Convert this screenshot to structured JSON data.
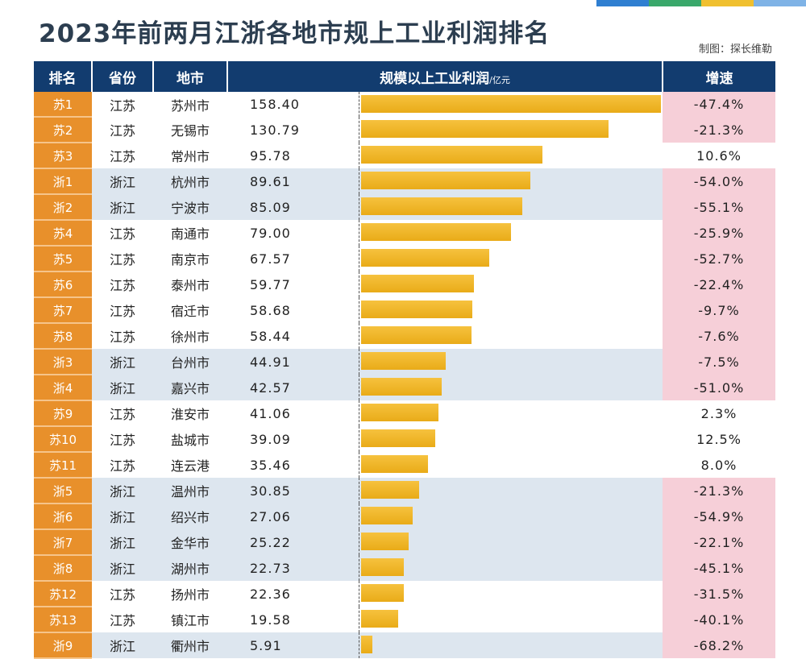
{
  "title": "2023年前两月江浙各地市规上工业利润排名",
  "credit": "制图：探长维勒",
  "colors": {
    "header_bg": "#123c6f",
    "rank_bg": "#e8902b",
    "bar": "#f0b82b",
    "zhejiang_row": "#dde6ef",
    "negative_growth": "#f6cfd8"
  },
  "headers": {
    "rank": "排名",
    "province": "省份",
    "city": "地市",
    "profit": "规模以上工业利润",
    "profit_unit": "/亿元",
    "growth": "增速"
  },
  "chart_data": {
    "type": "bar",
    "orientation": "horizontal",
    "title": "2023年前两月江浙各地市规上工业利润排名",
    "xlabel": "规模以上工业利润/亿元",
    "xlim": [
      0,
      158.4
    ],
    "rows": [
      {
        "rank": "苏1",
        "province": "江苏",
        "city": "苏州市",
        "value": 158.4,
        "value_label": "158.40",
        "growth": "-47.4%"
      },
      {
        "rank": "苏2",
        "province": "江苏",
        "city": "无锡市",
        "value": 130.79,
        "value_label": "130.79",
        "growth": "-21.3%"
      },
      {
        "rank": "苏3",
        "province": "江苏",
        "city": "常州市",
        "value": 95.78,
        "value_label": "95.78",
        "growth": "10.6%"
      },
      {
        "rank": "浙1",
        "province": "浙江",
        "city": "杭州市",
        "value": 89.61,
        "value_label": "89.61",
        "growth": "-54.0%"
      },
      {
        "rank": "浙2",
        "province": "浙江",
        "city": "宁波市",
        "value": 85.09,
        "value_label": "85.09",
        "growth": "-55.1%"
      },
      {
        "rank": "苏4",
        "province": "江苏",
        "city": "南通市",
        "value": 79.0,
        "value_label": "79.00",
        "growth": "-25.9%"
      },
      {
        "rank": "苏5",
        "province": "江苏",
        "city": "南京市",
        "value": 67.57,
        "value_label": "67.57",
        "growth": "-52.7%"
      },
      {
        "rank": "苏6",
        "province": "江苏",
        "city": "泰州市",
        "value": 59.77,
        "value_label": "59.77",
        "growth": "-22.4%"
      },
      {
        "rank": "苏7",
        "province": "江苏",
        "city": "宿迁市",
        "value": 58.68,
        "value_label": "58.68",
        "growth": "-9.7%"
      },
      {
        "rank": "苏8",
        "province": "江苏",
        "city": "徐州市",
        "value": 58.44,
        "value_label": "58.44",
        "growth": "-7.6%"
      },
      {
        "rank": "浙3",
        "province": "浙江",
        "city": "台州市",
        "value": 44.91,
        "value_label": "44.91",
        "growth": "-7.5%"
      },
      {
        "rank": "浙4",
        "province": "浙江",
        "city": "嘉兴市",
        "value": 42.57,
        "value_label": "42.57",
        "growth": "-51.0%"
      },
      {
        "rank": "苏9",
        "province": "江苏",
        "city": "淮安市",
        "value": 41.06,
        "value_label": "41.06",
        "growth": "2.3%"
      },
      {
        "rank": "苏10",
        "province": "江苏",
        "city": "盐城市",
        "value": 39.09,
        "value_label": "39.09",
        "growth": "12.5%"
      },
      {
        "rank": "苏11",
        "province": "江苏",
        "city": "连云港",
        "value": 35.46,
        "value_label": "35.46",
        "growth": "8.0%"
      },
      {
        "rank": "浙5",
        "province": "浙江",
        "city": "温州市",
        "value": 30.85,
        "value_label": "30.85",
        "growth": "-21.3%"
      },
      {
        "rank": "浙6",
        "province": "浙江",
        "city": "绍兴市",
        "value": 27.06,
        "value_label": "27.06",
        "growth": "-54.9%"
      },
      {
        "rank": "浙7",
        "province": "浙江",
        "city": "金华市",
        "value": 25.22,
        "value_label": "25.22",
        "growth": "-22.1%"
      },
      {
        "rank": "浙8",
        "province": "浙江",
        "city": "湖州市",
        "value": 22.73,
        "value_label": "22.73",
        "growth": "-45.1%"
      },
      {
        "rank": "苏12",
        "province": "江苏",
        "city": "扬州市",
        "value": 22.36,
        "value_label": "22.36",
        "growth": "-31.5%"
      },
      {
        "rank": "苏13",
        "province": "江苏",
        "city": "镇江市",
        "value": 19.58,
        "value_label": "19.58",
        "growth": "-40.1%"
      },
      {
        "rank": "浙9",
        "province": "浙江",
        "city": "衢州市",
        "value": 5.91,
        "value_label": "5.91",
        "growth": "-68.2%"
      }
    ]
  }
}
